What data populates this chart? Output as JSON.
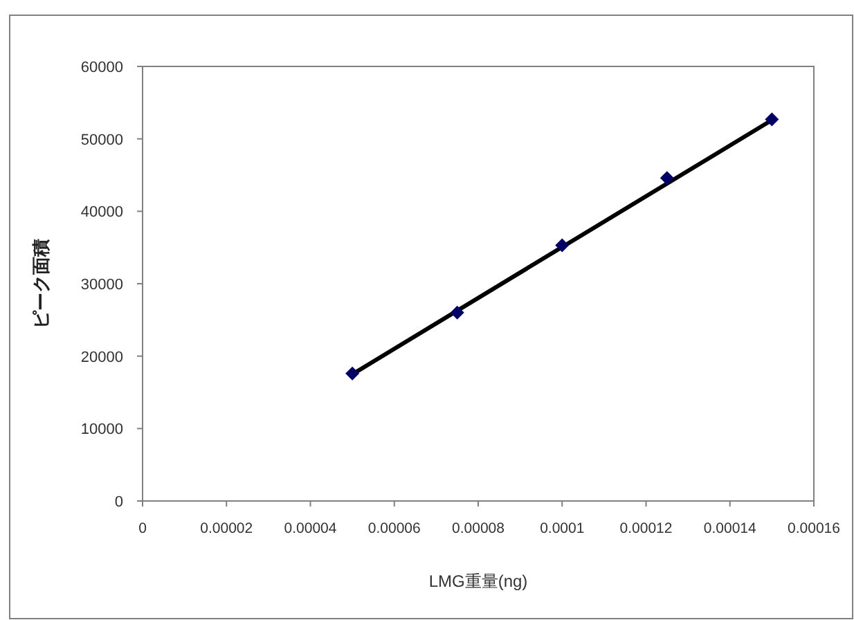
{
  "chart_data": {
    "type": "scatter",
    "xlabel": "LMG重量(ng)",
    "ylabel": "ピーク面積",
    "x": [
      5e-05,
      7.5e-05,
      0.0001,
      0.000125,
      0.00015
    ],
    "series": [
      {
        "type": "scatter",
        "color": "#000066",
        "marker": "diamond",
        "values": [
          17600,
          26000,
          35300,
          44600,
          52700
        ]
      },
      {
        "type": "line",
        "color": "#000000",
        "x": [
          5e-05,
          0.00015
        ],
        "values": [
          17500,
          52600
        ]
      }
    ],
    "xlim": [
      0,
      0.00016
    ],
    "ylim": [
      0,
      60000
    ],
    "xticks": [
      0,
      {
        "value": 2e-05,
        "label": "0.00002"
      },
      {
        "value": 4e-05,
        "label": "0.00004"
      },
      {
        "value": 6e-05,
        "label": "0.00006"
      },
      {
        "value": 8e-05,
        "label": "0.00008"
      },
      0.0001,
      0.00012,
      0.00014,
      0.00016
    ],
    "yticks": [
      0,
      10000,
      20000,
      30000,
      40000,
      50000,
      60000
    ],
    "grid": false
  }
}
